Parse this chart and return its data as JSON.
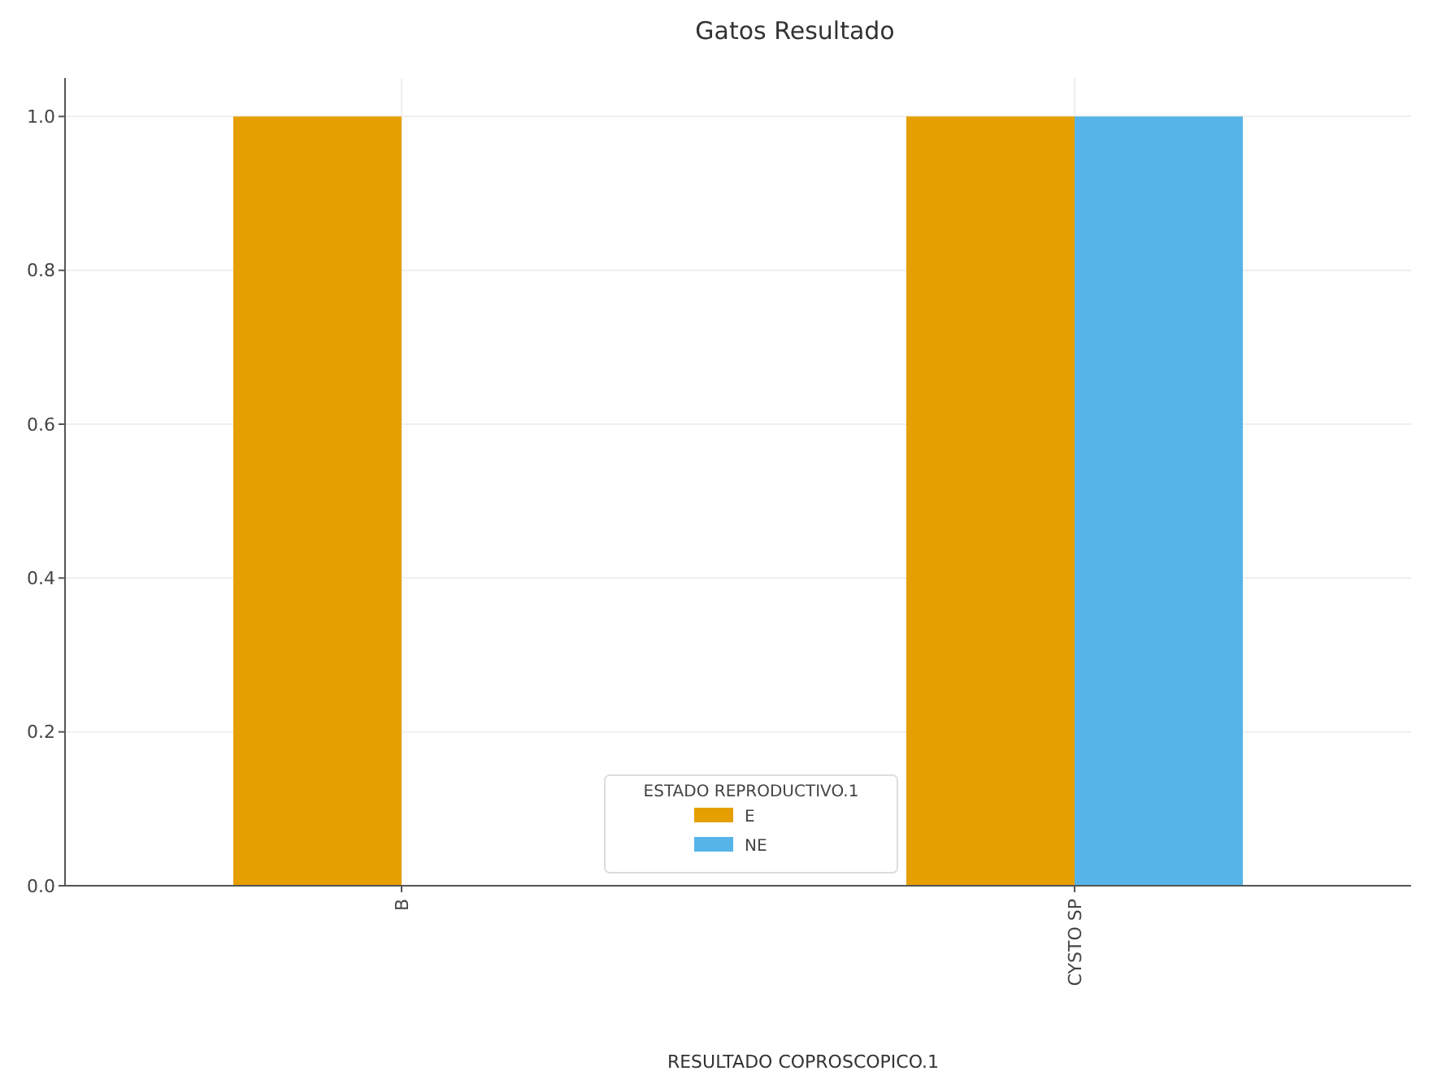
{
  "chart_data": {
    "type": "bar",
    "title": "Gatos Resultado",
    "xlabel": "RESULTADO COPROSCOPICO.1",
    "legend_title": "ESTADO REPRODUCTIVO.1",
    "categories": [
      "B",
      "CYSTO SP"
    ],
    "series": [
      {
        "name": "E",
        "color": "#e69f00",
        "values": [
          1,
          1
        ]
      },
      {
        "name": "NE",
        "color": "#56b4e9",
        "values": [
          null,
          1
        ]
      }
    ],
    "ylim": [
      0,
      1.05
    ],
    "yticks": [
      {
        "value": 0,
        "label": "0.0"
      },
      {
        "value": 0.2,
        "label": "0.2"
      },
      {
        "value": 0.4,
        "label": "0.4"
      },
      {
        "value": 0.6,
        "label": "0.6"
      },
      {
        "value": 0.8,
        "label": "0.8"
      },
      {
        "value": 1,
        "label": "1.0"
      }
    ],
    "grid": true,
    "legend": "bottom"
  }
}
